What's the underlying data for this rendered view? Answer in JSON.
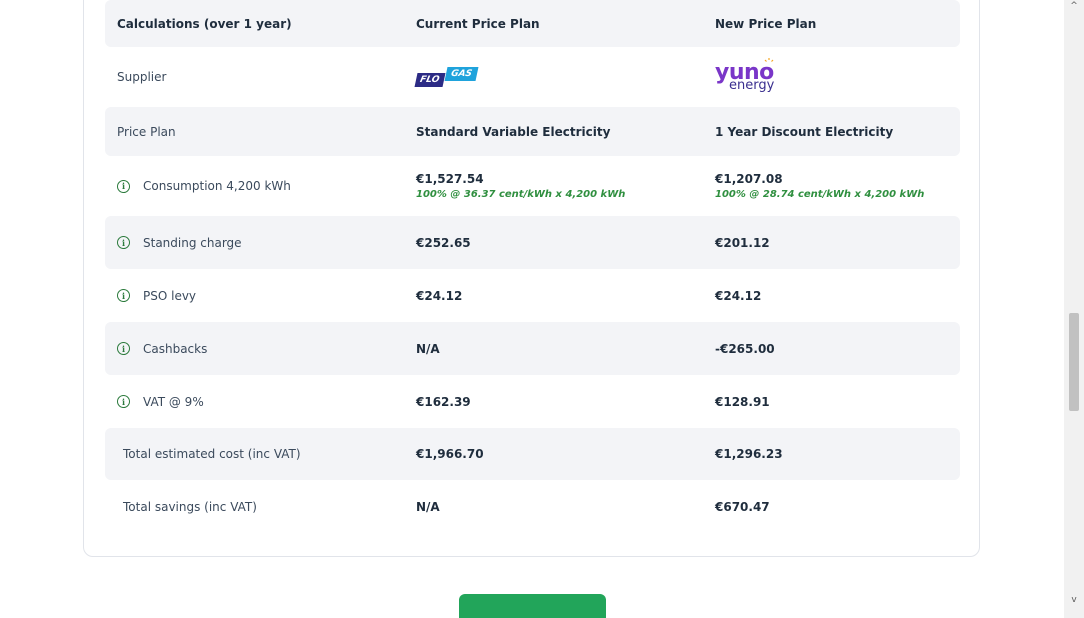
{
  "table": {
    "headers": {
      "calc": "Calculations (over 1 year)",
      "current": "Current Price Plan",
      "new": "New Price Plan"
    },
    "supplier": {
      "label": "Supplier",
      "current_logo": {
        "part1": "FLO",
        "part2": "GAS"
      },
      "new_logo": {
        "part1": "yuno",
        "part2": "energy"
      }
    },
    "price_plan": {
      "label": "Price Plan",
      "current": "Standard Variable Electricity",
      "new": "1 Year Discount Electricity"
    },
    "consumption": {
      "label": "Consumption 4,200 kWh",
      "current": "€1,527.54",
      "current_detail": "100% @ 36.37 cent/kWh x 4,200 kWh",
      "new": "€1,207.08",
      "new_detail": "100% @ 28.74 cent/kWh x 4,200 kWh"
    },
    "standing_charge": {
      "label": "Standing charge",
      "current": "€252.65",
      "new": "€201.12"
    },
    "pso_levy": {
      "label": "PSO levy",
      "current": "€24.12",
      "new": "€24.12"
    },
    "cashbacks": {
      "label": "Cashbacks",
      "current": "N/A",
      "new": "-€265.00"
    },
    "vat": {
      "label": "VAT @ 9%",
      "current": "€162.39",
      "new": "€128.91"
    },
    "total_cost": {
      "label": "Total estimated cost (inc VAT)",
      "current": "€1,966.70",
      "new": "€1,296.23"
    },
    "total_savings": {
      "label": "Total savings (inc VAT)",
      "current": "N/A",
      "new": "€670.47"
    }
  },
  "icons": {
    "info": "i",
    "scroll_up": "^",
    "scroll_down": "v"
  },
  "colors": {
    "accent_green": "#2f8f3f",
    "button_green": "#22a55a",
    "flo_blue": "#2c2b85",
    "gas_blue": "#1fa3dc",
    "yuno_purple": "#7a36c8"
  }
}
